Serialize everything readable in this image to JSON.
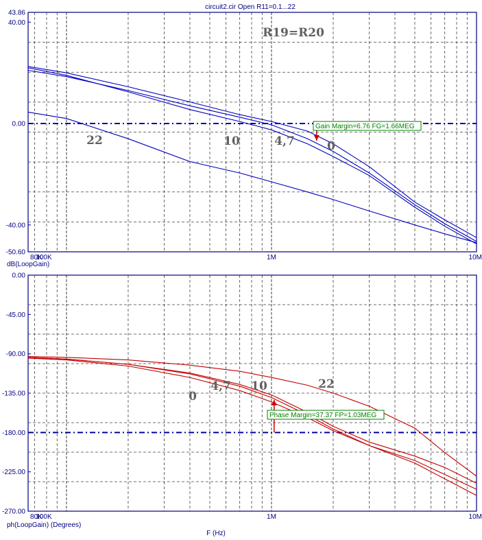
{
  "title": "circuit2.cir Open R11=0.1...22",
  "xlabel": "F (Hz)",
  "colors": {
    "axis": "#000080",
    "gain": "#0000c0",
    "phase": "#c00000",
    "annotation": "#008000",
    "marker": "#d00000",
    "label": "#606060"
  },
  "x_tick_labels": [
    "80K",
    "100K",
    "1M",
    "10M"
  ],
  "chart_data": [
    {
      "type": "line",
      "ylabel": "dB(LoopGain)",
      "xscale": "log",
      "xlim": [
        65000,
        10000000
      ],
      "ylim": [
        -50.6,
        43.86
      ],
      "y_ticks": [
        43.86,
        40.0,
        0.0,
        -40.0,
        -50.6
      ],
      "y_tick_labels": [
        "43.86",
        "40.00",
        "0.00",
        "-40.00",
        "-50.60"
      ],
      "grid": true,
      "reference_line": 0.0,
      "text_annotation": "R19=R20",
      "x": [
        65000,
        100000,
        200000,
        400000,
        700000,
        1000000,
        1500000,
        2000000,
        3000000,
        5000000,
        7000000,
        10000000
      ],
      "series": [
        {
          "name": "0",
          "values": [
            22.5,
            20.0,
            14.5,
            8.5,
            3.5,
            0.8,
            -3.0,
            -8.0,
            -17.0,
            -31.0,
            -38.0,
            -45.0
          ]
        },
        {
          "name": "4,7",
          "values": [
            21.0,
            18.5,
            13.0,
            7.0,
            2.5,
            -0.5,
            -6.0,
            -11.0,
            -19.5,
            -32.0,
            -39.5,
            -46.5
          ]
        },
        {
          "name": "10",
          "values": [
            22.0,
            19.0,
            12.5,
            5.5,
            0.8,
            -2.5,
            -8.0,
            -13.0,
            -20.5,
            -33.0,
            -40.5,
            -47.5
          ]
        },
        {
          "name": "22",
          "values": [
            4.5,
            2.0,
            -6.0,
            -15.0,
            -19.5,
            -23.0,
            -27.0,
            -30.0,
            -34.5,
            -40.0,
            -43.5,
            -47.0
          ]
        }
      ],
      "curve_labels": [
        "22",
        "10",
        "4,7",
        "0"
      ],
      "annotation": {
        "text": "Gain Margin=6.76 FG=1.66MEG",
        "x": 1660000,
        "y_from": 0.0,
        "y_to": -6.76
      }
    },
    {
      "type": "line",
      "ylabel": "ph(LoopGain) (Degrees)",
      "xscale": "log",
      "xlim": [
        65000,
        10000000
      ],
      "ylim": [
        -270.0,
        0.0
      ],
      "y_ticks": [
        0.0,
        -45.0,
        -90.0,
        -135.0,
        -180.0,
        -225.0,
        -270.0
      ],
      "y_tick_labels": [
        "0.00",
        "-45.00",
        "-90.00",
        "-135.00",
        "-180.00",
        "-225.00",
        "-270.00"
      ],
      "grid": true,
      "reference_line": -180.0,
      "x": [
        65000,
        100000,
        200000,
        400000,
        700000,
        1000000,
        1500000,
        2000000,
        3000000,
        5000000,
        7000000,
        10000000
      ],
      "series": [
        {
          "name": "0",
          "values": [
            -95.0,
            -97.0,
            -104.0,
            -117.0,
            -132.0,
            -145.0,
            -163.0,
            -178.0,
            -195.0,
            -215.0,
            -233.0,
            -252.0
          ]
        },
        {
          "name": "4,7",
          "values": [
            -94.0,
            -96.0,
            -102.0,
            -113.0,
            -127.0,
            -140.0,
            -160.0,
            -176.0,
            -195.0,
            -212.0,
            -228.0,
            -245.0
          ]
        },
        {
          "name": "10",
          "values": [
            -94.0,
            -96.0,
            -102.0,
            -112.0,
            -125.0,
            -137.0,
            -157.0,
            -173.0,
            -191.0,
            -207.0,
            -220.0,
            -238.0
          ]
        },
        {
          "name": "22",
          "values": [
            -93.0,
            -94.0,
            -97.0,
            -103.0,
            -110.0,
            -117.0,
            -126.0,
            -135.0,
            -150.0,
            -175.0,
            -203.0,
            -230.0
          ]
        }
      ],
      "curve_labels": [
        "0",
        "4,7",
        "10",
        "22"
      ],
      "annotation": {
        "text": "Phase Margin=37.37 FP=1.03MEG",
        "x": 1030000,
        "y_from": -180.0,
        "y_to": -142.63
      }
    }
  ]
}
